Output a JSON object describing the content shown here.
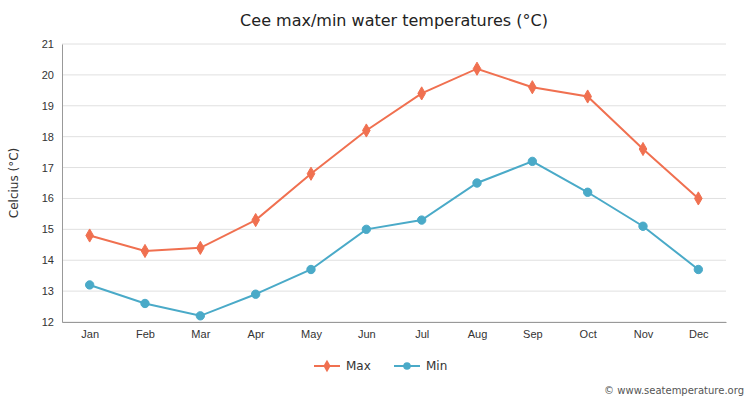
{
  "chart_data": {
    "type": "line",
    "title": "Cee max/min water temperatures (°C)",
    "ylabel": "Celcius (°C)",
    "categories": [
      "Jan",
      "Feb",
      "Mar",
      "Apr",
      "May",
      "Jun",
      "Jul",
      "Aug",
      "Sep",
      "Oct",
      "Nov",
      "Dec"
    ],
    "series": [
      {
        "name": "Max",
        "color": "#f07050",
        "marker": "diamond",
        "values": [
          14.8,
          14.3,
          14.4,
          15.3,
          16.8,
          18.2,
          19.4,
          20.2,
          19.6,
          19.3,
          17.6,
          16.0
        ]
      },
      {
        "name": "Min",
        "color": "#4aaac8",
        "marker": "circle",
        "values": [
          13.2,
          12.6,
          12.2,
          12.9,
          13.7,
          15.0,
          15.3,
          16.5,
          17.2,
          16.2,
          15.1,
          13.7
        ]
      }
    ],
    "ylim": [
      12,
      21
    ],
    "yticks": [
      12,
      13,
      14,
      15,
      16,
      17,
      18,
      19,
      20,
      21
    ],
    "grid": true,
    "legend": "bottom",
    "annotation": "© www.seatemperature.org"
  }
}
